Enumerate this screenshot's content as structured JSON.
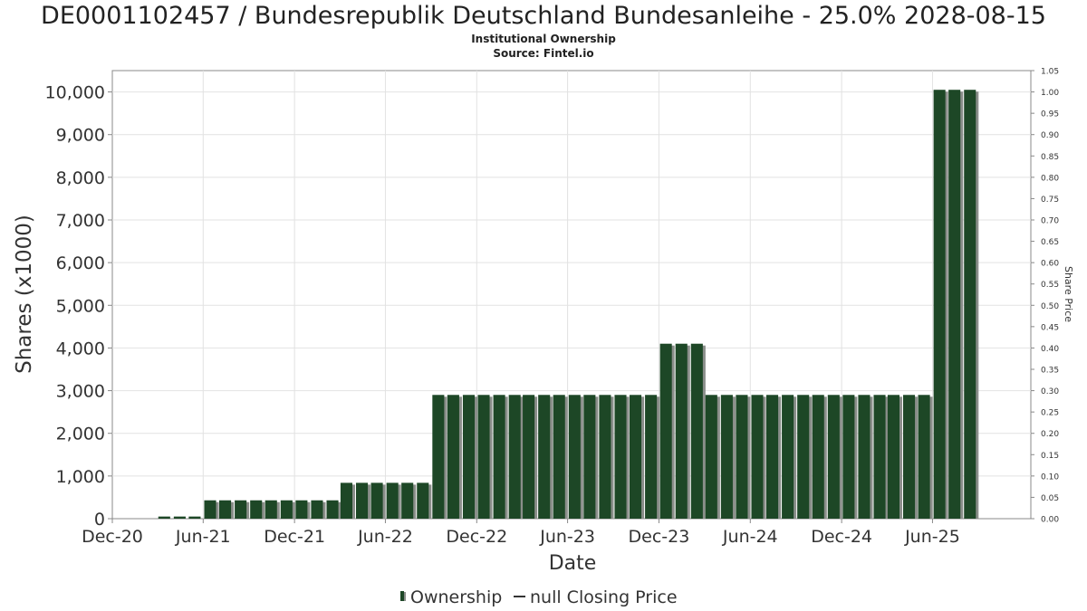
{
  "header": {
    "title": "DE0001102457 / Bundesrepublik Deutschland Bundesanleihe - 25.0% 2028-08-15",
    "subtitle": "Institutional Ownership",
    "source": "Source: Fintel.io"
  },
  "colors": {
    "bar": "#1d4726",
    "bar_shadow": "#8a8e8a",
    "grid": "#e2e2e2",
    "axis": "#888888"
  },
  "legend": {
    "ownership_label": "Ownership",
    "price_label": "null Closing Price"
  },
  "chart_data": {
    "type": "bar",
    "title": "DE0001102457 / Bundesrepublik Deutschland Bundesanleihe - 25.0% 2028-08-15",
    "subtitle": "Institutional Ownership",
    "xlabel": "Date",
    "ylabel": "Shares (x1000)",
    "y2label": "Share Price",
    "xlim": [
      "2020-12-01",
      "2025-12-15"
    ],
    "ylim": [
      0,
      10500
    ],
    "y2lim": [
      0,
      1.05
    ],
    "x_ticks": [
      "Dec-20",
      "Jun-21",
      "Dec-21",
      "Jun-22",
      "Dec-22",
      "Jun-23",
      "Dec-23",
      "Jun-24",
      "Dec-24",
      "Jun-25"
    ],
    "x_tick_dates": [
      "2020-12-01",
      "2021-06-01",
      "2021-12-01",
      "2022-06-01",
      "2022-12-01",
      "2023-06-01",
      "2023-12-01",
      "2024-06-01",
      "2024-12-01",
      "2025-06-01"
    ],
    "y_ticks": [
      "0",
      "1,000",
      "2,000",
      "3,000",
      "4,000",
      "5,000",
      "6,000",
      "7,000",
      "8,000",
      "9,000",
      "10,000"
    ],
    "y_tick_values": [
      0,
      1000,
      2000,
      3000,
      4000,
      5000,
      6000,
      7000,
      8000,
      9000,
      10000
    ],
    "y2_ticks": [
      "0.00",
      "0.05",
      "0.10",
      "0.15",
      "0.20",
      "0.25",
      "0.30",
      "0.35",
      "0.40",
      "0.45",
      "0.50",
      "0.55",
      "0.60",
      "0.65",
      "0.70",
      "0.75",
      "0.80",
      "0.85",
      "0.90",
      "0.95",
      "1.00",
      "1.05"
    ],
    "y2_tick_values": [
      0,
      0.05,
      0.1,
      0.15,
      0.2,
      0.25,
      0.3,
      0.35,
      0.4,
      0.45,
      0.5,
      0.55,
      0.6,
      0.65,
      0.7,
      0.75,
      0.8,
      0.85,
      0.9,
      0.95,
      1.0,
      1.05
    ],
    "grid": true,
    "legend_position": "bottom-center",
    "series": [
      {
        "name": "Ownership",
        "x": [
          "2021-03-15",
          "2021-04-15",
          "2021-05-15",
          "2021-06-15",
          "2021-07-15",
          "2021-08-15",
          "2021-09-15",
          "2021-10-15",
          "2021-11-15",
          "2021-12-15",
          "2022-01-15",
          "2022-02-15",
          "2022-03-15",
          "2022-04-15",
          "2022-05-15",
          "2022-06-15",
          "2022-07-15",
          "2022-08-15",
          "2022-09-15",
          "2022-10-15",
          "2022-11-15",
          "2022-12-15",
          "2023-01-15",
          "2023-02-15",
          "2023-03-15",
          "2023-04-15",
          "2023-05-15",
          "2023-06-15",
          "2023-07-15",
          "2023-08-15",
          "2023-09-15",
          "2023-10-15",
          "2023-11-15",
          "2023-12-15",
          "2024-01-15",
          "2024-02-15",
          "2024-03-15",
          "2024-04-15",
          "2024-05-15",
          "2024-06-15",
          "2024-07-15",
          "2024-08-15",
          "2024-09-15",
          "2024-10-15",
          "2024-11-15",
          "2024-12-15",
          "2025-01-15",
          "2025-02-15",
          "2025-03-15",
          "2025-04-15",
          "2025-05-15",
          "2025-06-15",
          "2025-07-15",
          "2025-08-15"
        ],
        "values": [
          50,
          50,
          50,
          430,
          430,
          430,
          430,
          430,
          430,
          430,
          430,
          430,
          840,
          840,
          840,
          840,
          840,
          840,
          2900,
          2900,
          2900,
          2900,
          2900,
          2900,
          2900,
          2900,
          2900,
          2900,
          2900,
          2900,
          2900,
          2900,
          2900,
          4100,
          4100,
          4100,
          2900,
          2900,
          2900,
          2900,
          2900,
          2900,
          2900,
          2900,
          2900,
          2900,
          2900,
          2900,
          2900,
          2900,
          2900,
          10050,
          10050,
          10050
        ]
      }
    ]
  }
}
